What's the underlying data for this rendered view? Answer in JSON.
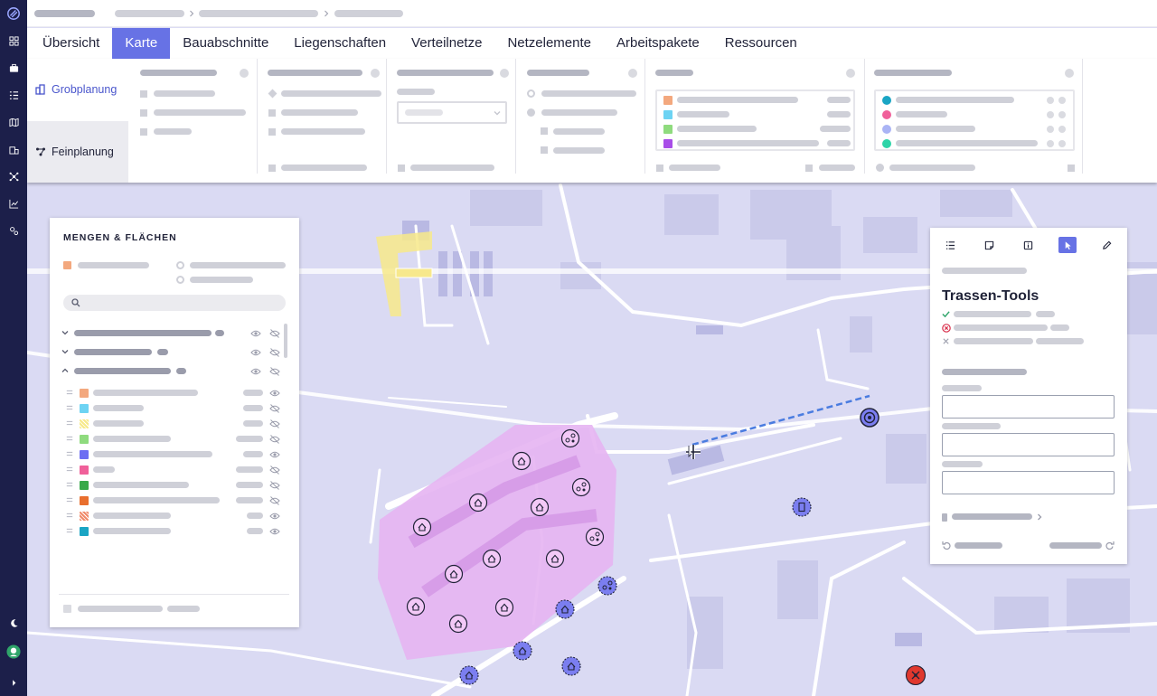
{
  "tabs": [
    "Übersicht",
    "Karte",
    "Bauabschnitte",
    "Liegenschaften",
    "Verteilnetze",
    "Netzelemente",
    "Arbeitspakete",
    "Ressourcen"
  ],
  "active_tab": "Karte",
  "modes": {
    "grob": "Grobplanung",
    "fein": "Feinplanung"
  },
  "active_mode": "Grobplanung",
  "left_panel": {
    "title": "MENGEN & FLÄCHEN",
    "layer_swatches": [
      "#f3a87e",
      "#6dd3f3",
      "#f7e98a",
      "#8fdb7e",
      "#6d6ef2",
      "#f0609a",
      "#38a94a",
      "#e96f2e",
      "#f08a6a",
      "#1aa5c4"
    ]
  },
  "right_panel": {
    "title": "Trassen-Tools",
    "tools": [
      "list-icon",
      "note-icon",
      "info-icon",
      "pointer-icon",
      "pencil-icon"
    ],
    "active_tool": "pointer-icon"
  },
  "colors": {
    "accent": "#6772e5",
    "rail": "#1c1f4a",
    "map_bg": "#dadaf3",
    "area_fill": "#e6b4f2",
    "route_line": "#4a7ce0"
  },
  "ribbon_legend_colors_a": [
    "#f3a87e",
    "#6dd3f3",
    "#8fdb7e",
    "#a84de8"
  ],
  "ribbon_legend_colors_b": [
    "#1aa5c4",
    "#f0609a",
    "#aab4f5",
    "#2dd4a8"
  ]
}
